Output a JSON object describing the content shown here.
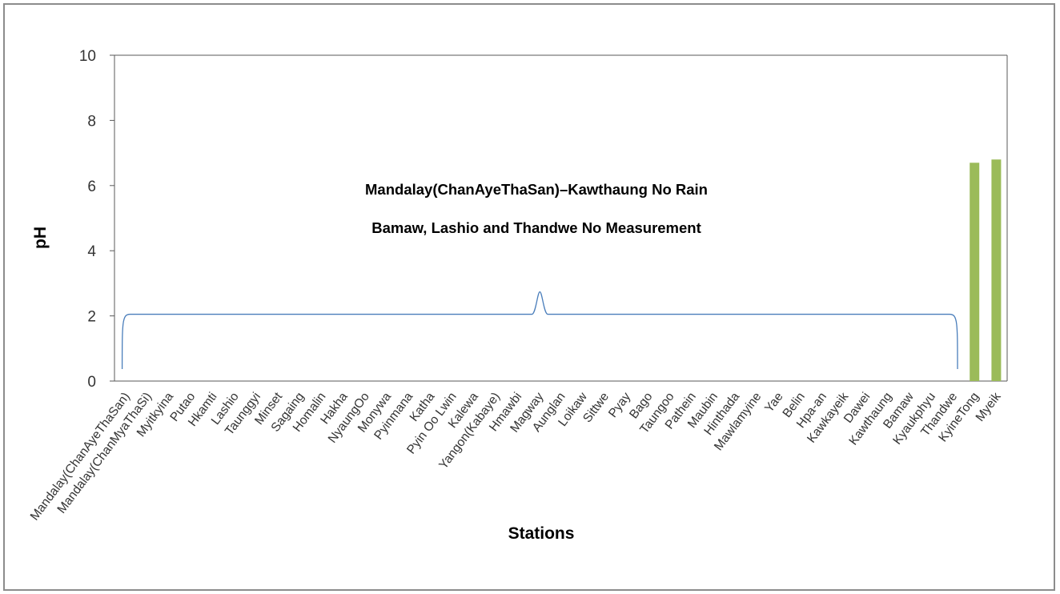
{
  "chart_data": {
    "type": "bar",
    "title": "",
    "xlabel": "Stations",
    "ylabel": "pH",
    "ylim": [
      0,
      10
    ],
    "yticks": [
      0,
      2,
      4,
      6,
      8,
      10
    ],
    "grid": false,
    "colors": {
      "bar": "#9bbb59",
      "brace": "#4a7ebb",
      "axis": "#595959"
    },
    "categories": [
      "Mandalay(ChanAyeThaSan)",
      "Mandalay(ChanMyaThaSi)",
      "Myitkyina",
      "Putao",
      "Hkamti",
      "Lashio",
      "Taunggyi",
      "Minset",
      "Sagaing",
      "Homalin",
      "Hakha",
      "NyaungOo",
      "Monywa",
      "Pyinmana",
      "Katha",
      "Pyin Oo Lwin",
      "Kalewa",
      "Yangon(Kabaye)",
      "Hmawbi",
      "Magway",
      "Aunglan",
      "Loikaw",
      "Sittwe",
      "Pyay",
      "Bago",
      "Taungoo",
      "Pathein",
      "Maubin",
      "Hinthada",
      "Mawlamyine",
      "Yae",
      "Belin",
      "Hpa-an",
      "Kawkayeik",
      "Dawei",
      "Kawthaung",
      "Bamaw",
      "Kyaukphyu",
      "Thandwe",
      "KyineTong",
      "Myeik"
    ],
    "series": [
      {
        "values": [
          null,
          null,
          null,
          null,
          null,
          null,
          null,
          null,
          null,
          null,
          null,
          null,
          null,
          null,
          null,
          null,
          null,
          null,
          null,
          null,
          null,
          null,
          null,
          null,
          null,
          null,
          null,
          null,
          null,
          null,
          null,
          null,
          null,
          null,
          null,
          null,
          null,
          null,
          null,
          6.7,
          6.8
        ]
      }
    ],
    "brace": {
      "from": "Mandalay(ChanAyeThaSan)",
      "to": "Thandwe",
      "level": 2.05
    },
    "annotations": [
      "Mandalay(ChanAyeThaSan)–Kawthaung  No Rain",
      "Bamaw, Lashio and Thandwe  No Measurement"
    ]
  }
}
